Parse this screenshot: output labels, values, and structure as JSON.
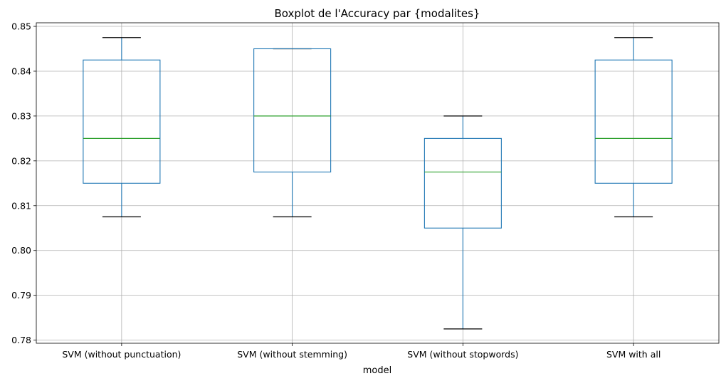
{
  "chart_data": {
    "type": "boxplot",
    "title": "Boxplot de l'Accuracy par {modalites}",
    "xlabel": "model",
    "ylabel": "",
    "ylim": [
      0.7793,
      0.8508
    ],
    "yticks": [
      0.78,
      0.79,
      0.8,
      0.81,
      0.82,
      0.83,
      0.84,
      0.85
    ],
    "ytick_labels": [
      "0.78",
      "0.79",
      "0.80",
      "0.81",
      "0.82",
      "0.83",
      "0.84",
      "0.85"
    ],
    "grid": true,
    "categories": [
      "SVM (without punctuation)",
      "SVM (without stemming)",
      "SVM (without stopwords)",
      "SVM with all"
    ],
    "boxes": [
      {
        "whisker_low": 0.8075,
        "q1": 0.815,
        "median": 0.825,
        "q3": 0.8425,
        "whisker_high": 0.8475
      },
      {
        "whisker_low": 0.8075,
        "q1": 0.8175,
        "median": 0.83,
        "q3": 0.845,
        "whisker_high": 0.845
      },
      {
        "whisker_low": 0.7825,
        "q1": 0.805,
        "median": 0.8175,
        "q3": 0.825,
        "whisker_high": 0.83
      },
      {
        "whisker_low": 0.8075,
        "q1": 0.815,
        "median": 0.825,
        "q3": 0.8425,
        "whisker_high": 0.8475
      }
    ],
    "colors": {
      "box": "#1f77b4",
      "median": "#2ca02c",
      "cap": "#000000",
      "grid": "#b0b0b0",
      "axis": "#000000"
    }
  }
}
